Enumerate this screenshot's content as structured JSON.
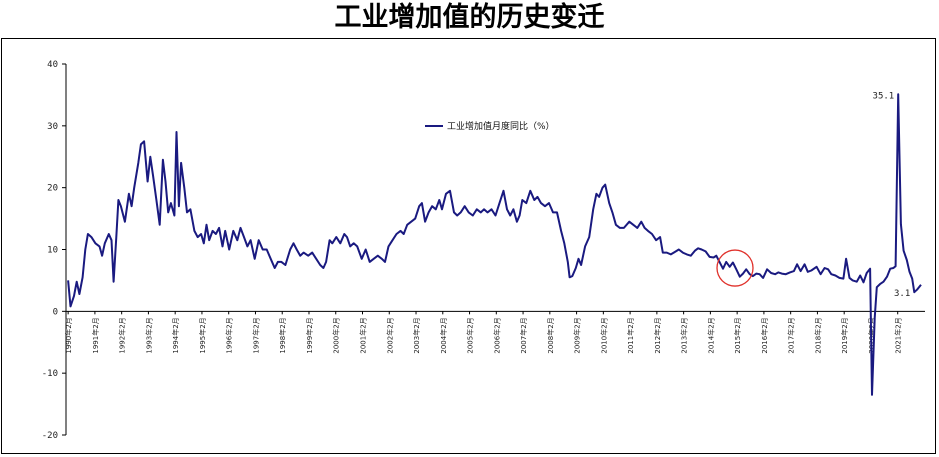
{
  "page_title": "工业增加值的历史变迁",
  "chart_data": {
    "type": "line",
    "title": "工业增加值的历史变迁",
    "xlabel": "",
    "ylabel": "",
    "ylim": [
      -20,
      40
    ],
    "yticks": [
      -20,
      -10,
      0,
      10,
      20,
      30,
      40
    ],
    "grid": false,
    "legend_position": "top-center",
    "series_color": "#1a1a80",
    "highlight_color": "#e0302a",
    "x_tick_labels": [
      "1990年2月",
      "1991年2月",
      "1992年2月",
      "1993年2月",
      "1994年2月",
      "1995年2月",
      "1996年2月",
      "1997年2月",
      "1998年2月",
      "1999年2月",
      "2000年2月",
      "2001年2月",
      "2002年2月",
      "2003年2月",
      "2004年2月",
      "2005年2月",
      "2006年2月",
      "2007年2月",
      "2008年2月",
      "2009年2月",
      "2010年2月",
      "2011年2月",
      "2012年2月",
      "2013年2月",
      "2014年2月",
      "2015年2月",
      "2016年2月",
      "2017年2月",
      "2018年2月",
      "2019年2月",
      "2020年2月",
      "2021年2月"
    ],
    "series": [
      {
        "name": "工业增加值月度同比（%）",
        "points": [
          [
            1990.08,
            5.0
          ],
          [
            1990.17,
            0.8
          ],
          [
            1990.3,
            2.5
          ],
          [
            1990.4,
            4.8
          ],
          [
            1990.5,
            2.8
          ],
          [
            1990.62,
            5.5
          ],
          [
            1990.72,
            10.0
          ],
          [
            1990.82,
            12.5
          ],
          [
            1990.95,
            12.0
          ],
          [
            1991.1,
            11.0
          ],
          [
            1991.25,
            10.5
          ],
          [
            1991.35,
            9.0
          ],
          [
            1991.45,
            11.0
          ],
          [
            1991.6,
            12.5
          ],
          [
            1991.7,
            11.5
          ],
          [
            1991.78,
            4.8
          ],
          [
            1991.88,
            12.0
          ],
          [
            1991.96,
            18.0
          ],
          [
            1992.05,
            17.0
          ],
          [
            1992.2,
            14.5
          ],
          [
            1992.35,
            19.0
          ],
          [
            1992.45,
            17.0
          ],
          [
            1992.55,
            20.0
          ],
          [
            1992.7,
            24.0
          ],
          [
            1992.8,
            27.0
          ],
          [
            1992.92,
            27.5
          ],
          [
            1993.05,
            21.0
          ],
          [
            1993.15,
            25.0
          ],
          [
            1993.25,
            22.0
          ],
          [
            1993.38,
            18.0
          ],
          [
            1993.5,
            14.0
          ],
          [
            1993.62,
            24.5
          ],
          [
            1993.72,
            21.0
          ],
          [
            1993.82,
            16.0
          ],
          [
            1993.92,
            17.5
          ],
          [
            1994.05,
            15.5
          ],
          [
            1994.13,
            29.0
          ],
          [
            1994.22,
            17.0
          ],
          [
            1994.3,
            24.0
          ],
          [
            1994.42,
            20.0
          ],
          [
            1994.52,
            16.0
          ],
          [
            1994.65,
            16.5
          ],
          [
            1994.8,
            13.0
          ],
          [
            1994.92,
            12.0
          ],
          [
            1995.05,
            12.5
          ],
          [
            1995.15,
            11.0
          ],
          [
            1995.25,
            14.0
          ],
          [
            1995.35,
            11.5
          ],
          [
            1995.48,
            13.0
          ],
          [
            1995.6,
            12.5
          ],
          [
            1995.72,
            13.5
          ],
          [
            1995.85,
            10.5
          ],
          [
            1995.95,
            13.0
          ],
          [
            1996.1,
            10.0
          ],
          [
            1996.25,
            13.0
          ],
          [
            1996.4,
            11.5
          ],
          [
            1996.52,
            13.5
          ],
          [
            1996.65,
            12.0
          ],
          [
            1996.78,
            10.5
          ],
          [
            1996.9,
            11.5
          ],
          [
            1997.05,
            8.5
          ],
          [
            1997.2,
            11.5
          ],
          [
            1997.35,
            10.0
          ],
          [
            1997.5,
            10.0
          ],
          [
            1997.65,
            8.5
          ],
          [
            1997.8,
            7.0
          ],
          [
            1997.92,
            8.0
          ],
          [
            1998.05,
            8.0
          ],
          [
            1998.2,
            7.5
          ],
          [
            1998.38,
            10.0
          ],
          [
            1998.5,
            11.0
          ],
          [
            1998.62,
            10.0
          ],
          [
            1998.75,
            9.0
          ],
          [
            1998.88,
            9.5
          ],
          [
            1999.05,
            9.0
          ],
          [
            1999.2,
            9.5
          ],
          [
            1999.35,
            8.5
          ],
          [
            1999.5,
            7.5
          ],
          [
            1999.62,
            7.0
          ],
          [
            1999.72,
            8.0
          ],
          [
            1999.85,
            11.5
          ],
          [
            1999.95,
            11.0
          ],
          [
            2000.1,
            12.0
          ],
          [
            2000.25,
            11.0
          ],
          [
            2000.4,
            12.5
          ],
          [
            2000.5,
            12.0
          ],
          [
            2000.62,
            10.5
          ],
          [
            2000.75,
            11.0
          ],
          [
            2000.88,
            10.5
          ],
          [
            2001.05,
            8.5
          ],
          [
            2001.2,
            10.0
          ],
          [
            2001.35,
            8.0
          ],
          [
            2001.5,
            8.5
          ],
          [
            2001.65,
            9.0
          ],
          [
            2001.8,
            8.5
          ],
          [
            2001.92,
            8.0
          ],
          [
            2002.05,
            10.5
          ],
          [
            2002.2,
            11.5
          ],
          [
            2002.35,
            12.5
          ],
          [
            2002.5,
            13.0
          ],
          [
            2002.62,
            12.5
          ],
          [
            2002.75,
            14.0
          ],
          [
            2002.9,
            14.5
          ],
          [
            2003.05,
            15.0
          ],
          [
            2003.2,
            17.0
          ],
          [
            2003.3,
            17.5
          ],
          [
            2003.42,
            14.5
          ],
          [
            2003.55,
            16.0
          ],
          [
            2003.68,
            17.0
          ],
          [
            2003.82,
            16.5
          ],
          [
            2003.95,
            18.0
          ],
          [
            2004.05,
            16.5
          ],
          [
            2004.2,
            19.0
          ],
          [
            2004.35,
            19.5
          ],
          [
            2004.5,
            16.0
          ],
          [
            2004.62,
            15.5
          ],
          [
            2004.75,
            16.0
          ],
          [
            2004.9,
            17.0
          ],
          [
            2005.05,
            16.0
          ],
          [
            2005.2,
            15.5
          ],
          [
            2005.35,
            16.5
          ],
          [
            2005.5,
            16.0
          ],
          [
            2005.62,
            16.5
          ],
          [
            2005.75,
            16.0
          ],
          [
            2005.9,
            16.5
          ],
          [
            2006.05,
            15.5
          ],
          [
            2006.2,
            17.5
          ],
          [
            2006.35,
            19.5
          ],
          [
            2006.48,
            16.5
          ],
          [
            2006.6,
            15.5
          ],
          [
            2006.72,
            16.5
          ],
          [
            2006.85,
            14.5
          ],
          [
            2006.95,
            15.5
          ],
          [
            2007.05,
            18.0
          ],
          [
            2007.2,
            17.5
          ],
          [
            2007.35,
            19.5
          ],
          [
            2007.5,
            18.0
          ],
          [
            2007.62,
            18.5
          ],
          [
            2007.75,
            17.5
          ],
          [
            2007.9,
            17.0
          ],
          [
            2008.05,
            17.5
          ],
          [
            2008.2,
            16.0
          ],
          [
            2008.35,
            16.0
          ],
          [
            2008.5,
            13.0
          ],
          [
            2008.62,
            11.0
          ],
          [
            2008.75,
            8.0
          ],
          [
            2008.82,
            5.5
          ],
          [
            2008.92,
            5.7
          ],
          [
            2009.05,
            7.0
          ],
          [
            2009.15,
            8.5
          ],
          [
            2009.25,
            7.5
          ],
          [
            2009.4,
            10.5
          ],
          [
            2009.55,
            12.0
          ],
          [
            2009.7,
            16.5
          ],
          [
            2009.82,
            19.0
          ],
          [
            2009.92,
            18.5
          ],
          [
            2010.05,
            20.0
          ],
          [
            2010.15,
            20.5
          ],
          [
            2010.3,
            17.5
          ],
          [
            2010.42,
            16.0
          ],
          [
            2010.55,
            14.0
          ],
          [
            2010.7,
            13.5
          ],
          [
            2010.85,
            13.5
          ],
          [
            2011.05,
            14.5
          ],
          [
            2011.2,
            14.0
          ],
          [
            2011.35,
            13.5
          ],
          [
            2011.5,
            14.5
          ],
          [
            2011.62,
            13.5
          ],
          [
            2011.75,
            13.0
          ],
          [
            2011.9,
            12.5
          ],
          [
            2012.05,
            11.5
          ],
          [
            2012.2,
            12.0
          ],
          [
            2012.3,
            9.5
          ],
          [
            2012.45,
            9.5
          ],
          [
            2012.6,
            9.2
          ],
          [
            2012.75,
            9.6
          ],
          [
            2012.9,
            10.0
          ],
          [
            2013.05,
            9.5
          ],
          [
            2013.2,
            9.2
          ],
          [
            2013.35,
            9.0
          ],
          [
            2013.5,
            9.8
          ],
          [
            2013.62,
            10.2
          ],
          [
            2013.75,
            10.0
          ],
          [
            2013.9,
            9.7
          ],
          [
            2014.05,
            8.8
          ],
          [
            2014.2,
            8.7
          ],
          [
            2014.3,
            9.0
          ],
          [
            2014.42,
            8.0
          ],
          [
            2014.55,
            6.9
          ],
          [
            2014.67,
            8.0
          ],
          [
            2014.8,
            7.2
          ],
          [
            2014.92,
            7.9
          ],
          [
            2015.05,
            6.8
          ],
          [
            2015.18,
            5.6
          ],
          [
            2015.3,
            6.1
          ],
          [
            2015.42,
            6.8
          ],
          [
            2015.55,
            6.0
          ],
          [
            2015.67,
            5.7
          ],
          [
            2015.8,
            6.1
          ],
          [
            2015.92,
            6.0
          ],
          [
            2016.05,
            5.4
          ],
          [
            2016.2,
            6.8
          ],
          [
            2016.35,
            6.2
          ],
          [
            2016.5,
            6.0
          ],
          [
            2016.62,
            6.3
          ],
          [
            2016.75,
            6.1
          ],
          [
            2016.9,
            6.0
          ],
          [
            2017.05,
            6.3
          ],
          [
            2017.2,
            6.5
          ],
          [
            2017.32,
            7.6
          ],
          [
            2017.45,
            6.5
          ],
          [
            2017.6,
            7.6
          ],
          [
            2017.72,
            6.4
          ],
          [
            2017.85,
            6.6
          ],
          [
            2018.05,
            7.2
          ],
          [
            2018.2,
            6.0
          ],
          [
            2018.35,
            7.0
          ],
          [
            2018.48,
            6.8
          ],
          [
            2018.6,
            6.0
          ],
          [
            2018.75,
            5.8
          ],
          [
            2018.9,
            5.4
          ],
          [
            2019.05,
            5.3
          ],
          [
            2019.15,
            8.5
          ],
          [
            2019.28,
            5.4
          ],
          [
            2019.4,
            5.0
          ],
          [
            2019.55,
            4.8
          ],
          [
            2019.68,
            5.8
          ],
          [
            2019.8,
            4.7
          ],
          [
            2019.92,
            6.2
          ],
          [
            2020.05,
            6.9
          ],
          [
            2020.12,
            -13.5
          ],
          [
            2020.22,
            -1.1
          ],
          [
            2020.3,
            3.9
          ],
          [
            2020.42,
            4.4
          ],
          [
            2020.55,
            4.8
          ],
          [
            2020.68,
            5.6
          ],
          [
            2020.8,
            6.9
          ],
          [
            2020.92,
            7.0
          ],
          [
            2021.0,
            7.3
          ],
          [
            2021.1,
            35.1
          ],
          [
            2021.2,
            14.1
          ],
          [
            2021.3,
            9.8
          ],
          [
            2021.42,
            8.3
          ],
          [
            2021.52,
            6.4
          ],
          [
            2021.62,
            5.3
          ],
          [
            2021.7,
            3.1
          ],
          [
            2021.8,
            3.5
          ],
          [
            2021.95,
            4.3
          ]
        ]
      }
    ],
    "annotations": [
      {
        "text": "35.1",
        "x": 2021.1,
        "y": 35.1
      },
      {
        "text": "3.1",
        "x": 2021.7,
        "y": 3.1
      }
    ],
    "highlight_region": {
      "x": 2015.0,
      "y": 7.0
    }
  }
}
